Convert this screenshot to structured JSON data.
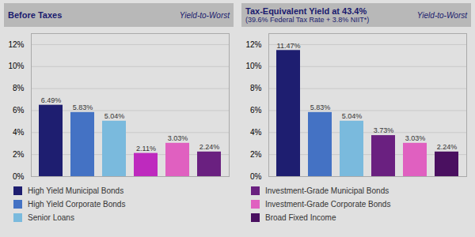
{
  "chart_data": [
    {
      "type": "bar",
      "title": "Before Taxes",
      "subtitle": [
        "Yield-to-Worst"
      ],
      "categories": [
        null,
        null,
        null,
        null,
        null,
        null
      ],
      "values": [
        6.49,
        5.83,
        5.04,
        2.11,
        3.03,
        2.24
      ],
      "value_labels": [
        "6.49%",
        "5.83%",
        "5.04%",
        "2.11%",
        "3.03%",
        "2.24%"
      ],
      "colors": [
        "#1e1e70",
        "#4472c4",
        "#7abadd",
        "#be2abe",
        "#e060c0",
        "#6a2080"
      ],
      "ylim": [
        0,
        13
      ],
      "yticks": [
        {
          "value": 0,
          "label": "0%"
        },
        {
          "value": 2,
          "label": "2%"
        },
        {
          "value": 4,
          "label": "4%"
        },
        {
          "value": 6,
          "label": "6%"
        },
        {
          "value": 8,
          "label": "8%"
        },
        {
          "value": 10,
          "label": "10%"
        },
        {
          "value": 12,
          "label": "12%"
        }
      ],
      "grid": true,
      "data_labels": true,
      "tick_labels": "y",
      "legend": "bottom",
      "legend_items": [
        {
          "name": "High Yield Municipal Bonds",
          "color": "#1e1e70"
        },
        {
          "name": "High Yield Corporate Bonds",
          "color": "#4472c4"
        },
        {
          "name": "Senior Loans",
          "color": "#7abadd"
        }
      ]
    },
    {
      "type": "bar",
      "title": "Tax-Equivalent Yield at 43.4%",
      "subtitle": [
        "(39.6% Federal Tax Rate + 3.8% NIIT*)",
        "Yield-to-Worst"
      ],
      "categories": [
        null,
        null,
        null,
        null,
        null,
        null
      ],
      "values": [
        11.47,
        5.83,
        5.04,
        3.73,
        3.03,
        2.24
      ],
      "value_labels": [
        "11.47%",
        "5.83%",
        "5.04%",
        "3.73%",
        "3.03%",
        "2.24%"
      ],
      "colors": [
        "#1e1e70",
        "#4472c4",
        "#7abadd",
        "#6a2080",
        "#e060c0",
        "#4a1060"
      ],
      "ylim": [
        0,
        13
      ],
      "yticks": [
        {
          "value": 0,
          "label": "0%"
        },
        {
          "value": 2,
          "label": "2%"
        },
        {
          "value": 4,
          "label": "4%"
        },
        {
          "value": 6,
          "label": "6%"
        },
        {
          "value": 8,
          "label": "8%"
        },
        {
          "value": 10,
          "label": "10%"
        },
        {
          "value": 12,
          "label": "12%"
        }
      ],
      "grid": true,
      "data_labels": true,
      "tick_labels": "y",
      "legend": "bottom",
      "legend_items": [
        {
          "name": "Investment-Grade Municipal Bonds",
          "color": "#6a2080"
        },
        {
          "name": "Investment-Grade Corporate Bonds",
          "color": "#e060c0"
        },
        {
          "name": "Broad Fixed Income",
          "color": "#4a1060"
        }
      ]
    }
  ]
}
